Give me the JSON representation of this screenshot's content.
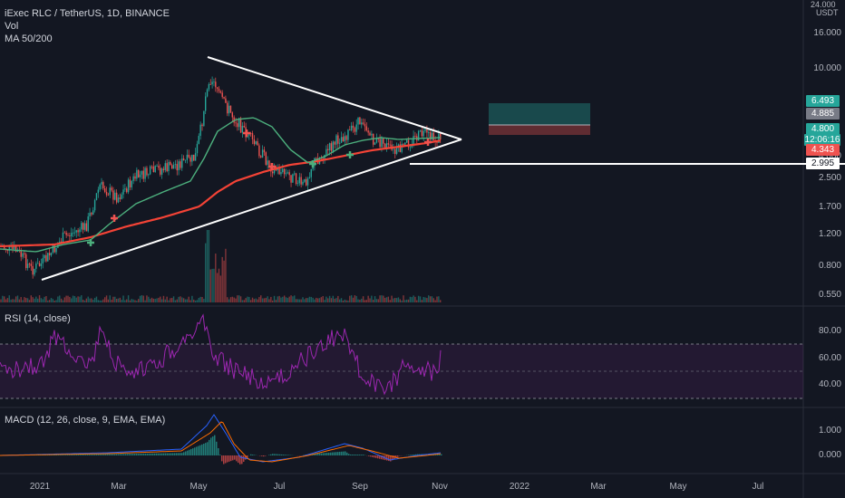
{
  "header": {
    "title": "iExec RLC / TetherUS, 1D, BINANCE",
    "vol_label": "Vol",
    "ma_label": "MA 50/200"
  },
  "price_axis": {
    "top_label": "24.000",
    "unit": "USDT",
    "labels": [
      "16.000",
      "10.000",
      "4.000",
      "2.500",
      "1.700",
      "1.200",
      "0.800",
      "0.550"
    ]
  },
  "price_tags": {
    "target": {
      "text": "6.493",
      "color": "#26a69a"
    },
    "last_close": {
      "text": "4.885",
      "color": "#787b86"
    },
    "current": {
      "text": "4.800",
      "color": "#26a69a"
    },
    "countdown": {
      "text": "12:06:16",
      "color": "#26a69a"
    },
    "stop": {
      "text": "4.343",
      "color": "#ef5350"
    },
    "support": {
      "text": "2.995",
      "color": "#ffffff"
    }
  },
  "rsi": {
    "title": "RSI (14, close)",
    "labels": [
      "80.00",
      "60.00",
      "40.00"
    ],
    "color": "#9c27b0"
  },
  "macd": {
    "title": "MACD (12, 26, close, 9, EMA, EMA)",
    "labels": [
      "1.000",
      "0.000"
    ]
  },
  "time_axis": {
    "labels": [
      "2021",
      "Mar",
      "May",
      "Jul",
      "Sep",
      "Nov",
      "2022",
      "Mar",
      "May",
      "Jul"
    ]
  },
  "colors": {
    "up": "#26a69a",
    "down": "#ef5350",
    "ma50": "#4caf7d",
    "ma200": "#f44336",
    "background": "#131722",
    "drawing": "#ffffff"
  }
}
